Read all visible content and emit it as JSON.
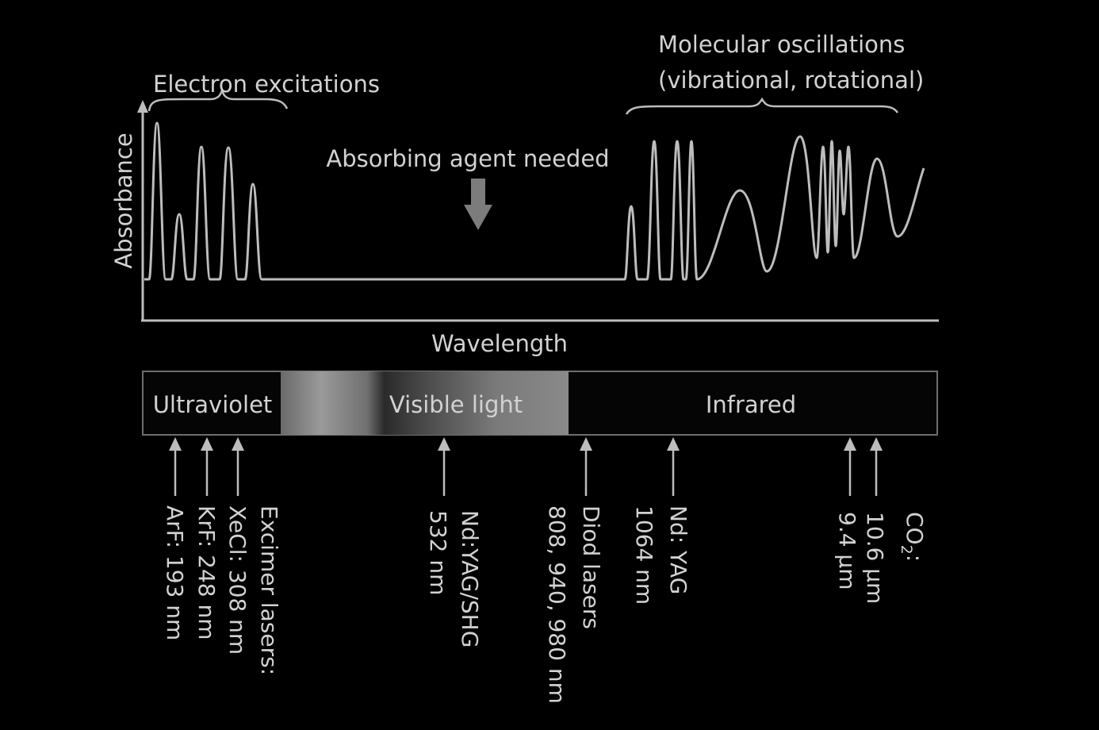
{
  "axes": {
    "y_label": "Absorbance",
    "x_label": "Wavelength"
  },
  "annotations": {
    "electron": "Electron excitations",
    "molecular_line1": "Molecular oscillations",
    "molecular_line2": "(vibrational, rotational)",
    "absorbing": "Absorbing agent needed"
  },
  "bands": {
    "uv": "Ultraviolet",
    "visible": "Visible light",
    "ir": "Infrared"
  },
  "lasers": {
    "excimer_title": "Excimer lasers:",
    "arf": "ArF: 193 nm",
    "krf": "KrF: 248 nm",
    "xecl": "XeCl: 308 nm",
    "ndyag_shg_title": "Nd:YAG/SHG",
    "ndyag_shg_value": "532 nm",
    "diode_title": "Diod lasers",
    "diode_value": "808, 940, 980 nm",
    "ndyag_title": "Nd: YAG",
    "ndyag_value": "1064 nm",
    "co2_title": "CO",
    "co2_sub": "2",
    "co2_colon": ":",
    "co2_a": "10.6 µm",
    "co2_b": "9.4 µm"
  },
  "colors": {
    "background": "#000000",
    "line": "#bdbdbd",
    "text": "#d2d2d2"
  }
}
